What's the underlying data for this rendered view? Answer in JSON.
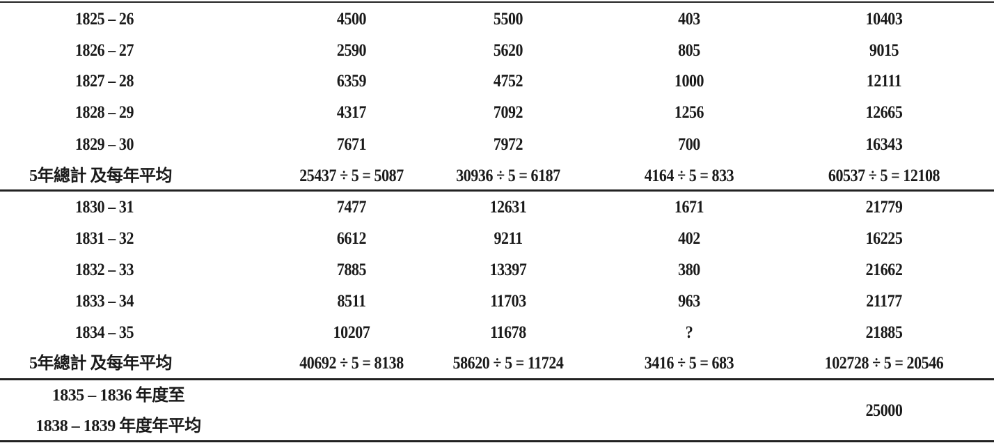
{
  "table": {
    "block1": [
      [
        "1825 – 26",
        "4500",
        "5500",
        "403",
        "10403"
      ],
      [
        "1826 – 27",
        "2590",
        "5620",
        "805",
        "9015"
      ],
      [
        "1827 – 28",
        "6359",
        "4752",
        "1000",
        "12111"
      ],
      [
        "1828 – 29",
        "4317",
        "7092",
        "1256",
        "12665"
      ],
      [
        "1829 – 30",
        "7671",
        "7972",
        "700",
        "16343"
      ]
    ],
    "summary1": [
      "5年總計 及每年平均",
      "25437 ÷ 5 = 5087",
      "30936 ÷ 5 = 6187",
      "4164 ÷ 5 = 833",
      "60537 ÷ 5 = 12108"
    ],
    "block2": [
      [
        "1830 – 31",
        "7477",
        "12631",
        "1671",
        "21779"
      ],
      [
        "1831 – 32",
        "6612",
        "9211",
        "402",
        "16225"
      ],
      [
        "1832 – 33",
        "7885",
        "13397",
        "380",
        "21662"
      ],
      [
        "1833 – 34",
        "8511",
        "11703",
        "963",
        "21177"
      ],
      [
        "1834 – 35",
        "10207",
        "11678",
        "?",
        "21885"
      ]
    ],
    "summary2": [
      "5年總計 及每年平均",
      "40692 ÷ 5 = 8138",
      "58620 ÷ 5 = 11724",
      "3416 ÷ 5 = 683",
      "102728 ÷ 5 = 20546"
    ],
    "final": {
      "label_line1": "1835 – 1836 年度至",
      "label_line2": "1838 – 1839 年度年平均",
      "total": "25000"
    }
  }
}
